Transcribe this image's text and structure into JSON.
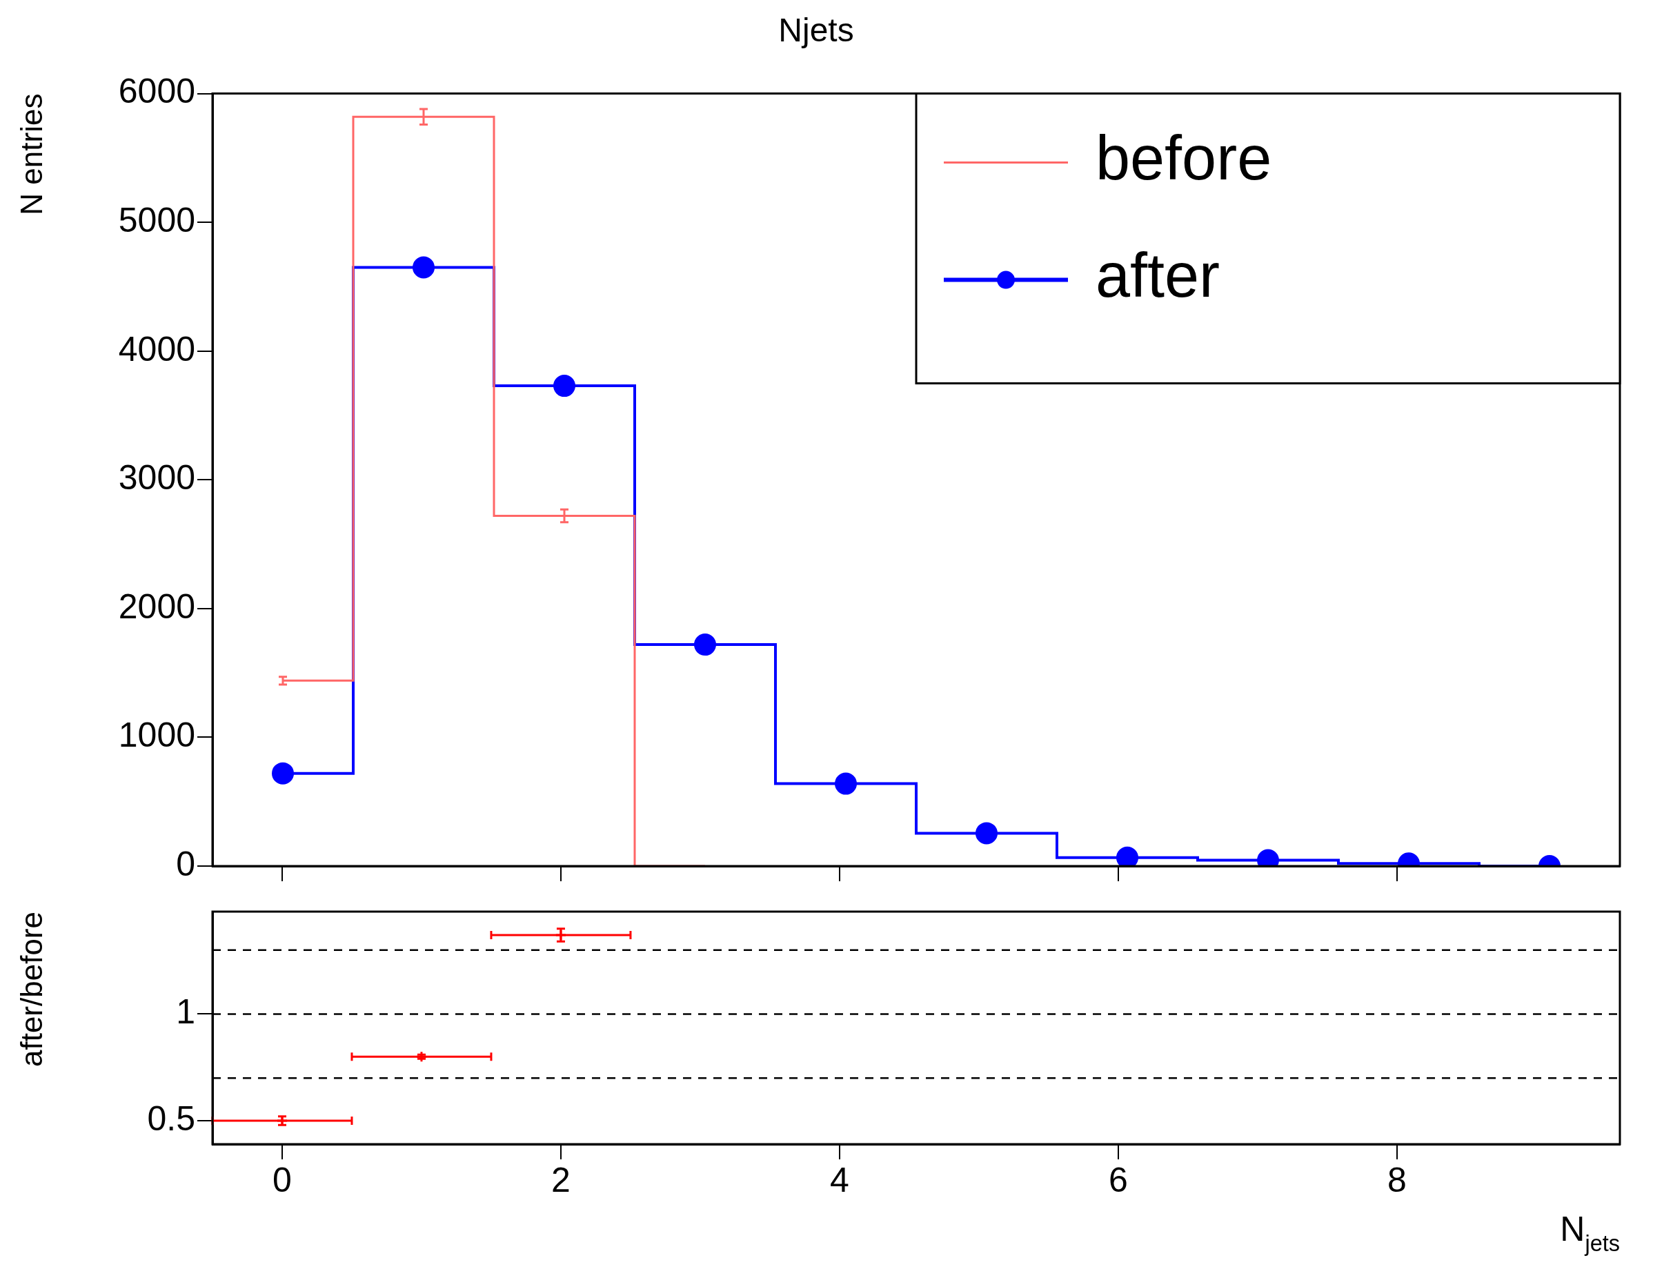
{
  "chart_data": [
    {
      "type": "step",
      "title": "Njets",
      "ylabel": "N entries",
      "x": [
        0.005,
        1.015,
        2.025,
        3.035,
        4.045,
        5.055,
        6.065,
        7.075,
        8.085,
        9.095
      ],
      "series": [
        {
          "name": "before",
          "color": "#ff6666",
          "values": [
            1440,
            5820,
            2720,
            0,
            null,
            null,
            null,
            null,
            null,
            null
          ],
          "errors": [
            30,
            60,
            50,
            null,
            null,
            null,
            null,
            null,
            null,
            null
          ]
        },
        {
          "name": "after",
          "color": "#0000ff",
          "marker": "circle",
          "values": [
            720,
            4650,
            3730,
            1720,
            640,
            255,
            65,
            45,
            20,
            0
          ],
          "errors": [
            null,
            70,
            null,
            null,
            null,
            null,
            null,
            null,
            null,
            null
          ]
        }
      ],
      "xlim": [
        -0.5,
        9.6
      ],
      "xticks": [
        0,
        2,
        4,
        6,
        8
      ],
      "ylim": [
        0,
        6000
      ],
      "yticks": [
        0,
        1000,
        2000,
        3000,
        4000,
        5000,
        6000
      ],
      "tick_labels": "y",
      "legend": "top right",
      "grid": false
    },
    {
      "type": "scatter",
      "xlabel": "N$_{jets}$",
      "ylabel": "after/before",
      "x": [
        0,
        1,
        2
      ],
      "values": [
        0.5,
        0.8,
        1.37
      ],
      "errors": [
        0.02,
        0.01,
        0.03
      ],
      "xerrors": [
        0.5,
        0.5,
        0.5
      ],
      "color": "#ff0000",
      "marker": "cross",
      "xlim": [
        -0.5,
        9.6
      ],
      "xticks": [
        0,
        2,
        4,
        6,
        8
      ],
      "ylim": [
        0.39,
        1.48
      ],
      "yticks": [
        0.5,
        1
      ],
      "grid": false,
      "ref_lines": [
        {
          "axis": "y",
          "value": 1.3,
          "color": "#000000",
          "line_style": "dashed"
        },
        {
          "axis": "y",
          "value": 1,
          "color": "#000000",
          "line_style": "dashed"
        },
        {
          "axis": "y",
          "value": 0.7,
          "color": "#000000",
          "line_style": "dashed"
        }
      ]
    }
  ]
}
